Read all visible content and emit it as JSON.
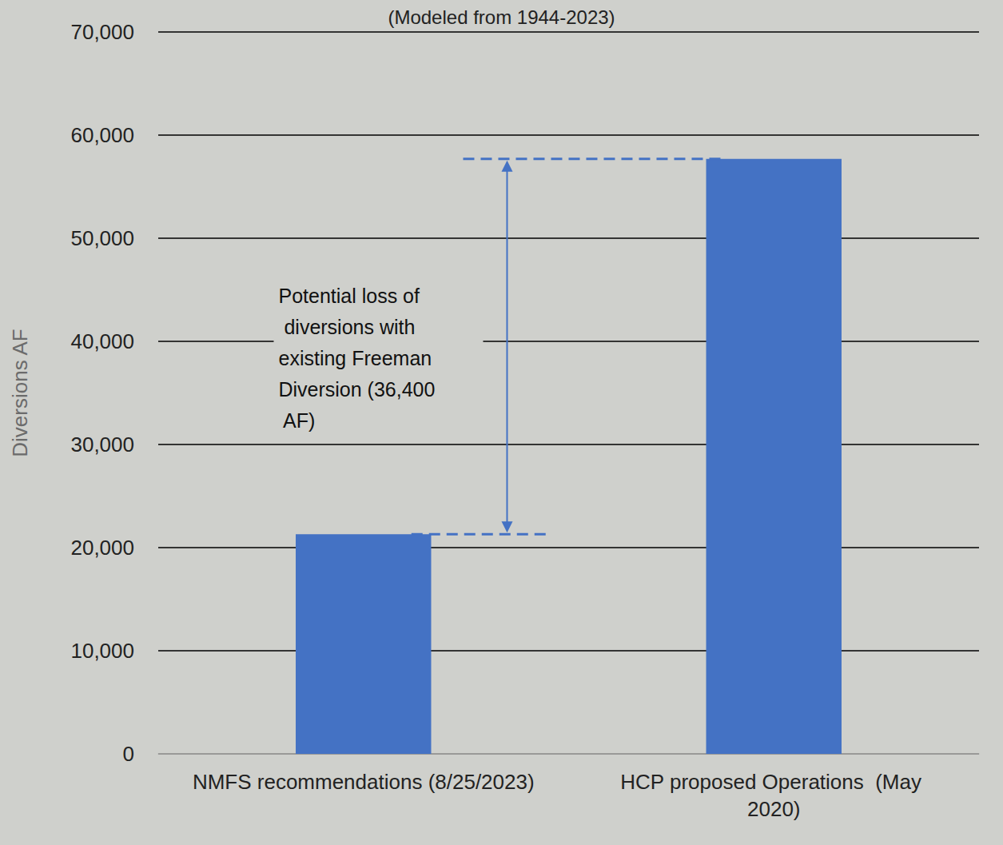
{
  "chart_data": {
    "type": "bar",
    "title": "(Modeled from 1944-2023)",
    "y_label": "Diversions AF",
    "categories": [
      "NMFS recommendations (8/25/2023)",
      "HCP proposed Operations  (May 2020)"
    ],
    "values": [
      21300,
      57700
    ],
    "color": "#4472c4",
    "ylim": [
      0,
      70000
    ],
    "yticks": [
      0,
      {
        "value": 10000,
        "label": "10,000"
      },
      {
        "value": 20000,
        "label": "20,000"
      },
      {
        "value": 30000,
        "label": "30,000"
      },
      {
        "value": 40000,
        "label": "40,000"
      },
      {
        "value": 50000,
        "label": "50,000"
      },
      {
        "value": 60000,
        "label": "60,000"
      },
      {
        "value": 70000,
        "label": "70,000"
      }
    ],
    "grid": true,
    "annotation": "Potential loss of diversions with existing Freeman Diversion (36,400 AF)"
  }
}
